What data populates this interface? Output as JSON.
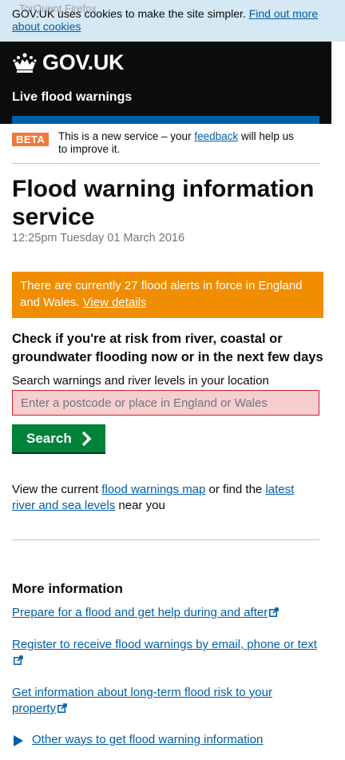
{
  "browser_overlay": {
    "text": "TorQuent Firefox"
  },
  "cookie_banner": {
    "text": "GOV.UK uses cookies to make the site simpler.",
    "link": "Find out more about cookies"
  },
  "header": {
    "logo_text": "GOV.UK",
    "service_name": "Live flood warnings"
  },
  "phase_banner": {
    "tag": "BETA",
    "text_before": "This is a new service – your",
    "link": "feedback",
    "text_after": "will help us to improve it."
  },
  "main": {
    "title": "Flood warning information service",
    "timestamp": "12:25pm Tuesday 01 March 2016",
    "alert": {
      "text": "There are currently 27 flood alerts in force in England and Wales.",
      "link": "View details"
    },
    "check_heading": "Check if you're at risk from river, coastal or groundwater flooding now or in the next few days",
    "search": {
      "label": "Search warnings and river levels in your location",
      "placeholder": "Enter a postcode or place in England or Wales",
      "value": "",
      "button_label": "Search"
    },
    "map_text": {
      "before": "View the current",
      "link1": "flood warnings map",
      "middle": "or find the",
      "link2": "latest river and sea levels",
      "after": "near you"
    }
  },
  "more_info": {
    "heading": "More information",
    "links": [
      "Prepare for a flood and get help during and after",
      "Register to receive flood warnings by email, phone or text",
      "Get information about long-term flood risk to your property"
    ],
    "other_ways": "Other ways to get flood warning information"
  },
  "icons": {
    "crown": "crown-icon",
    "chevron": "chevron-right-icon",
    "external": "external-link-icon",
    "triangle": "triangle-right-icon"
  },
  "colors": {
    "header_bg": "#0b0c0c",
    "brand_bar": "#005ea5",
    "beta_tag": "#f47738",
    "alert_bg": "#f18d00",
    "button_bg": "#00823b",
    "error_border": "#c9202f",
    "cookie_bg": "#d5e8f3",
    "link": "#005ea5"
  }
}
